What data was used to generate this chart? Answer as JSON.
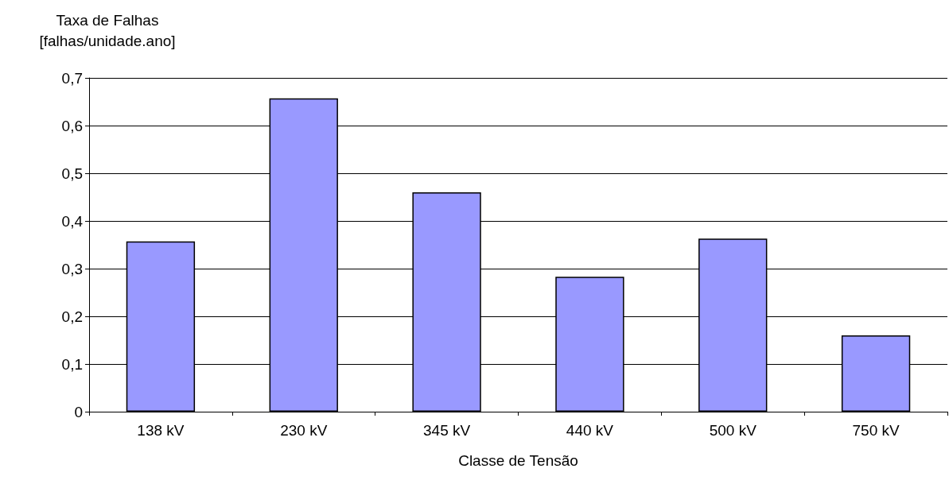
{
  "chart_data": {
    "type": "bar",
    "ylabel": "Taxa de Falhas\n[falhas/unidade.ano]",
    "xlabel": "Classe de Tensão",
    "categories": [
      "138 kV",
      "230 kV",
      "345 kV",
      "440 kV",
      "500 kV",
      "750 kV"
    ],
    "values": [
      0.357,
      0.657,
      0.46,
      0.283,
      0.363,
      0.16
    ],
    "color": "#9999ff",
    "ylim": [
      0,
      0.7
    ],
    "yticks": [
      0,
      {
        "value": 0.1,
        "label": "0,1"
      },
      {
        "value": 0.2,
        "label": "0,2"
      },
      {
        "value": 0.3,
        "label": "0,3"
      },
      {
        "value": 0.4,
        "label": "0,4"
      },
      {
        "value": 0.5,
        "label": "0,5"
      },
      {
        "value": 0.6,
        "label": "0,6"
      },
      {
        "value": 0.7,
        "label": "0,7"
      }
    ],
    "grid": "y"
  }
}
